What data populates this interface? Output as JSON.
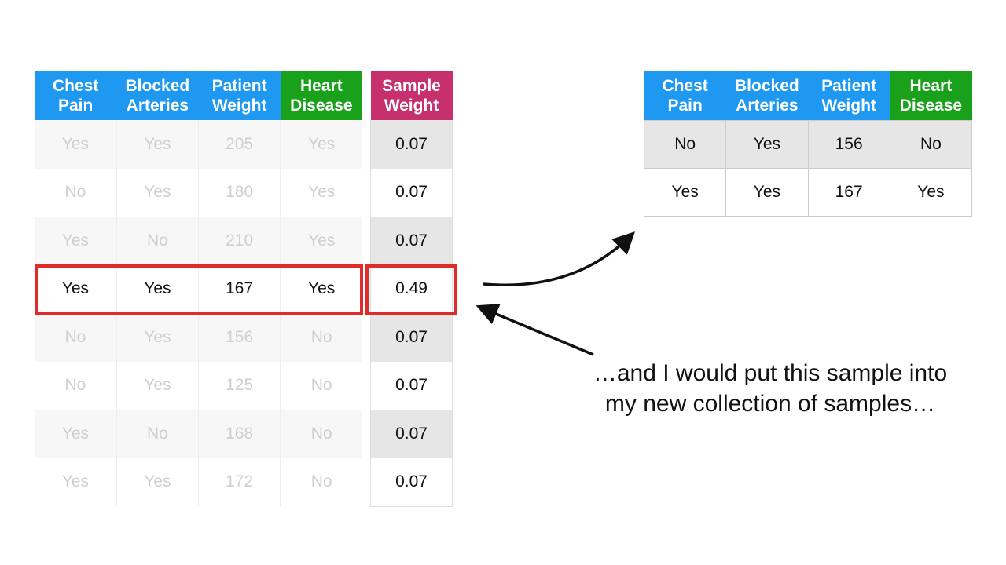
{
  "main_table": {
    "headers": [
      "Chest Pain",
      "Blocked Arteries",
      "Patient Weight",
      "Heart Disease"
    ],
    "rows": [
      [
        "Yes",
        "Yes",
        "205",
        "Yes"
      ],
      [
        "No",
        "Yes",
        "180",
        "Yes"
      ],
      [
        "Yes",
        "No",
        "210",
        "Yes"
      ],
      [
        "Yes",
        "Yes",
        "167",
        "Yes"
      ],
      [
        "No",
        "Yes",
        "156",
        "No"
      ],
      [
        "No",
        "Yes",
        "125",
        "No"
      ],
      [
        "Yes",
        "No",
        "168",
        "No"
      ],
      [
        "Yes",
        "Yes",
        "172",
        "No"
      ]
    ],
    "highlighted_row": 3
  },
  "weight_table": {
    "header": "Sample Weight",
    "values": [
      "0.07",
      "0.07",
      "0.07",
      "0.49",
      "0.07",
      "0.07",
      "0.07",
      "0.07"
    ]
  },
  "new_table": {
    "headers": [
      "Chest Pain",
      "Blocked Arteries",
      "Patient Weight",
      "Heart Disease"
    ],
    "rows": [
      [
        "No",
        "Yes",
        "156",
        "No"
      ],
      [
        "Yes",
        "Yes",
        "167",
        "Yes"
      ]
    ]
  },
  "caption": "…and I would put this sample into my new collection of samples…",
  "colors": {
    "header_blue": "#1e98f0",
    "header_green": "#19a11c",
    "header_magenta": "#c6306d",
    "highlight_red": "#e02b2b"
  }
}
